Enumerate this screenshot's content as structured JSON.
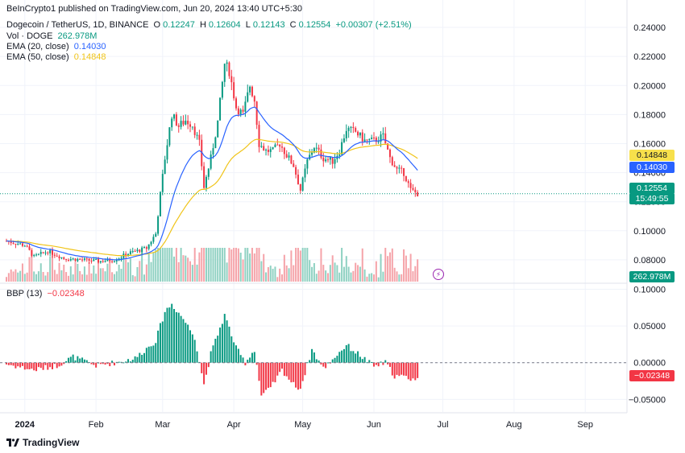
{
  "header": {
    "published": "BeInCrypto1 published on TradingView.com, Jun 20, 2024 13:40 UTC+5:30"
  },
  "legend": {
    "symbol": "Dogecoin / TetherUS, 1D, BINANCE",
    "o_label": "O",
    "o": "0.12247",
    "h_label": "H",
    "h": "0.12604",
    "l_label": "L",
    "l": "0.12143",
    "c_label": "C",
    "c": "0.12554",
    "change": "+0.00307 (+2.51%)",
    "vol_label": "Vol · DOGE",
    "vol": "262.978M",
    "ema20_label": "EMA (20, close)",
    "ema20": "0.14030",
    "ema50_label": "EMA (50, close)",
    "ema50": "0.14848",
    "bbp_label": "BBP (13)",
    "bbp": "−0.02348"
  },
  "price_labels": {
    "ema50": "0.14848",
    "ema20": "0.14030",
    "last": "0.12554",
    "countdown": "15:49:55",
    "volume": "262.978M",
    "bbp": "−0.02348"
  },
  "colors": {
    "up": "#089981",
    "down": "#f23645",
    "ema20": "#2962ff",
    "ema50": "#f0c419",
    "vol_up": "#8fd1c2",
    "vol_down": "#f5a3a9",
    "grid": "#f0f3fa"
  },
  "icons": {
    "lightning": "lightning-icon",
    "logo": "tradingview-logo-icon"
  },
  "footer": {
    "brand": "TradingView"
  },
  "chart_data": {
    "type": "candlestick",
    "x_labels": [
      "2024",
      "Feb",
      "Mar",
      "Apr",
      "May",
      "Jun",
      "Jul",
      "Aug",
      "Sep"
    ],
    "price_axis": {
      "ticks": [
        "0.24000",
        "0.22000",
        "0.20000",
        "0.18000",
        "0.16000",
        "0.14000",
        "0.12000",
        "0.10000",
        "0.08000"
      ],
      "ylim": [
        0.065,
        0.245
      ]
    },
    "bbp_axis": {
      "ticks": [
        "0.10000",
        "0.05000",
        "0.00000",
        "−0.05000"
      ],
      "ylim": [
        -0.065,
        0.105
      ]
    },
    "series": [
      {
        "name": "EMA (20, close)"
      },
      {
        "name": "EMA (50, close)"
      },
      {
        "name": "Vol · DOGE"
      },
      {
        "name": "BBP (13)"
      }
    ],
    "anchors": [
      [
        "2023-12-24",
        0.093
      ],
      [
        "2024-01-01",
        0.09
      ],
      [
        "2024-01-05",
        0.082
      ],
      [
        "2024-01-11",
        0.086
      ],
      [
        "2024-01-18",
        0.081
      ],
      [
        "2024-01-26",
        0.08
      ],
      [
        "2024-02-02",
        0.079
      ],
      [
        "2024-02-09",
        0.08
      ],
      [
        "2024-02-16",
        0.085
      ],
      [
        "2024-02-23",
        0.088
      ],
      [
        "2024-02-27",
        0.098
      ],
      [
        "2024-02-29",
        0.125
      ],
      [
        "2024-03-02",
        0.15
      ],
      [
        "2024-03-05",
        0.18
      ],
      [
        "2024-03-08",
        0.172
      ],
      [
        "2024-03-11",
        0.176
      ],
      [
        "2024-03-14",
        0.173
      ],
      [
        "2024-03-17",
        0.16
      ],
      [
        "2024-03-19",
        0.13
      ],
      [
        "2024-03-22",
        0.15
      ],
      [
        "2024-03-25",
        0.175
      ],
      [
        "2024-03-28",
        0.215
      ],
      [
        "2024-03-30",
        0.21
      ],
      [
        "2024-04-02",
        0.185
      ],
      [
        "2024-04-05",
        0.18
      ],
      [
        "2024-04-08",
        0.2
      ],
      [
        "2024-04-10",
        0.19
      ],
      [
        "2024-04-12",
        0.16
      ],
      [
        "2024-04-15",
        0.155
      ],
      [
        "2024-04-18",
        0.155
      ],
      [
        "2024-04-21",
        0.16
      ],
      [
        "2024-04-24",
        0.152
      ],
      [
        "2024-04-27",
        0.145
      ],
      [
        "2024-04-30",
        0.128
      ],
      [
        "2024-05-03",
        0.148
      ],
      [
        "2024-05-06",
        0.158
      ],
      [
        "2024-05-10",
        0.15
      ],
      [
        "2024-05-14",
        0.148
      ],
      [
        "2024-05-17",
        0.155
      ],
      [
        "2024-05-20",
        0.17
      ],
      [
        "2024-05-24",
        0.168
      ],
      [
        "2024-05-28",
        0.162
      ],
      [
        "2024-06-01",
        0.162
      ],
      [
        "2024-06-05",
        0.165
      ],
      [
        "2024-06-08",
        0.15
      ],
      [
        "2024-06-11",
        0.142
      ],
      [
        "2024-06-14",
        0.14
      ],
      [
        "2024-06-17",
        0.128
      ],
      [
        "2024-06-20",
        0.1255
      ]
    ],
    "bbp_anchors": [
      [
        "2023-12-24",
        -0.002
      ],
      [
        "2024-01-05",
        -0.01
      ],
      [
        "2024-01-15",
        -0.004
      ],
      [
        "2024-01-22",
        0.008
      ],
      [
        "2024-02-01",
        -0.004
      ],
      [
        "2024-02-09",
        0.0
      ],
      [
        "2024-02-18",
        0.006
      ],
      [
        "2024-02-27",
        0.03
      ],
      [
        "2024-03-02",
        0.07
      ],
      [
        "2024-03-05",
        0.08
      ],
      [
        "2024-03-10",
        0.06
      ],
      [
        "2024-03-15",
        0.035
      ],
      [
        "2024-03-19",
        -0.03
      ],
      [
        "2024-03-22",
        0.012
      ],
      [
        "2024-03-28",
        0.065
      ],
      [
        "2024-04-02",
        0.02
      ],
      [
        "2024-04-06",
        0.0
      ],
      [
        "2024-04-10",
        0.018
      ],
      [
        "2024-04-13",
        -0.045
      ],
      [
        "2024-04-17",
        -0.035
      ],
      [
        "2024-04-22",
        -0.01
      ],
      [
        "2024-04-27",
        -0.03
      ],
      [
        "2024-04-30",
        -0.035
      ],
      [
        "2024-05-05",
        0.018
      ],
      [
        "2024-05-10",
        -0.008
      ],
      [
        "2024-05-15",
        0.008
      ],
      [
        "2024-05-20",
        0.024
      ],
      [
        "2024-05-26",
        0.01
      ],
      [
        "2024-06-01",
        -0.005
      ],
      [
        "2024-06-06",
        0.0
      ],
      [
        "2024-06-10",
        -0.018
      ],
      [
        "2024-06-15",
        -0.02
      ],
      [
        "2024-06-20",
        -0.0235
      ]
    ]
  }
}
